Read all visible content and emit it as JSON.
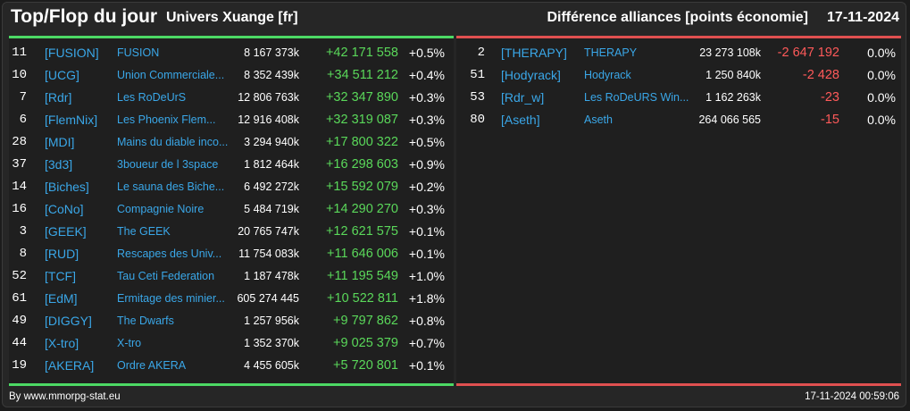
{
  "header": {
    "title": "Top/Flop du jour",
    "universe": "Univers Xuange [fr]",
    "right_title": "Différence alliances [points économie]",
    "date": "17-11-2024"
  },
  "colors": {
    "accent_top": "#4cd964",
    "accent_flop": "#e05050",
    "link": "#3aa7e8",
    "positive": "#5ad85a",
    "negative": "#ff5a5a"
  },
  "top": [
    {
      "rank": "11",
      "tag": "[FUSION]",
      "name": "FUSION",
      "points": "8 167 373k",
      "diff": "+42 171 558",
      "pct": "+0.5%"
    },
    {
      "rank": "10",
      "tag": "[UCG]",
      "name": "Union Commerciale...",
      "points": "8 352 439k",
      "diff": "+34 511 212",
      "pct": "+0.4%"
    },
    {
      "rank": "7",
      "tag": "[Rdr]",
      "name": "Les RoDeUrS",
      "points": "12 806 763k",
      "diff": "+32 347 890",
      "pct": "+0.3%"
    },
    {
      "rank": "6",
      "tag": "[FlemNix]",
      "name": "Les Phoenix Flem...",
      "points": "12 916 408k",
      "diff": "+32 319 087",
      "pct": "+0.3%"
    },
    {
      "rank": "28",
      "tag": "[MDI]",
      "name": "Mains du diable inco...",
      "points": "3 294 940k",
      "diff": "+17 800 322",
      "pct": "+0.5%"
    },
    {
      "rank": "37",
      "tag": "[3d3]",
      "name": "3boueur de l 3space",
      "points": "1 812 464k",
      "diff": "+16 298 603",
      "pct": "+0.9%"
    },
    {
      "rank": "14",
      "tag": "[Biches]",
      "name": "Le sauna des Biche...",
      "points": "6 492 272k",
      "diff": "+15 592 079",
      "pct": "+0.2%"
    },
    {
      "rank": "16",
      "tag": "[CoNo]",
      "name": "Compagnie Noire",
      "points": "5 484 719k",
      "diff": "+14 290 270",
      "pct": "+0.3%"
    },
    {
      "rank": "3",
      "tag": "[GEEK]",
      "name": "The GEEK",
      "points": "20 765 747k",
      "diff": "+12 621 575",
      "pct": "+0.1%"
    },
    {
      "rank": "8",
      "tag": "[RUD]",
      "name": "Rescapes des Univ...",
      "points": "11 754 083k",
      "diff": "+11 646 006",
      "pct": "+0.1%"
    },
    {
      "rank": "52",
      "tag": "[TCF]",
      "name": "Tau Ceti Federation",
      "points": "1 187 478k",
      "diff": "+11 195 549",
      "pct": "+1.0%"
    },
    {
      "rank": "61",
      "tag": "[EdM]",
      "name": "Ermitage des minier...",
      "points": "605 274 445",
      "diff": "+10 522 811",
      "pct": "+1.8%"
    },
    {
      "rank": "49",
      "tag": "[DIGGY]",
      "name": "The Dwarfs",
      "points": "1 257 956k",
      "diff": "+9 797 862",
      "pct": "+0.8%"
    },
    {
      "rank": "44",
      "tag": "[X-tro]",
      "name": "X-tro",
      "points": "1 352 370k",
      "diff": "+9 025 379",
      "pct": "+0.7%"
    },
    {
      "rank": "19",
      "tag": "[AKERA]",
      "name": "Ordre AKERA",
      "points": "4 455 605k",
      "diff": "+5 720 801",
      "pct": "+0.1%"
    }
  ],
  "flop": [
    {
      "rank": "2",
      "tag": "[THERAPY]",
      "name": "THERAPY",
      "points": "23 273 108k",
      "diff": "-2 647 192",
      "pct": "0.0%"
    },
    {
      "rank": "51",
      "tag": "[Hodyrack]",
      "name": "Hodyrack",
      "points": "1 250 840k",
      "diff": "-2 428",
      "pct": "0.0%"
    },
    {
      "rank": "53",
      "tag": "[Rdr_w]",
      "name": "Les RoDeURS Win...",
      "points": "1 162 263k",
      "diff": "-23",
      "pct": "0.0%"
    },
    {
      "rank": "80",
      "tag": "[Aseth]",
      "name": "Aseth",
      "points": "264 066 565",
      "diff": "-15",
      "pct": "0.0%"
    }
  ],
  "footer": {
    "credit": "By www.mmorpg-stat.eu",
    "timestamp": "17-11-2024 00:59:06"
  }
}
